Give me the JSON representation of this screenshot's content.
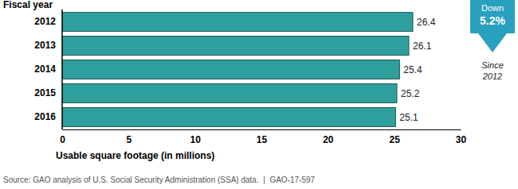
{
  "chart_data": {
    "type": "bar",
    "orientation": "horizontal",
    "y_label": "Fiscal year",
    "x_label": "Usable square footage (in millions)",
    "categories": [
      "2012",
      "2013",
      "2014",
      "2015",
      "2016"
    ],
    "values": [
      26.4,
      26.1,
      25.4,
      25.2,
      25.1
    ],
    "color": "#2e9f9c",
    "xlim": [
      0,
      30
    ],
    "xticks": [
      0,
      5,
      10,
      15,
      20,
      25,
      30
    ],
    "data_labels": true,
    "annotations": [
      "Down",
      "5.2%",
      "Since 2012"
    ],
    "source": "Source: GAO analysis of U.S. Social Security Administration (SSA) data.  |  GAO-17-597"
  }
}
